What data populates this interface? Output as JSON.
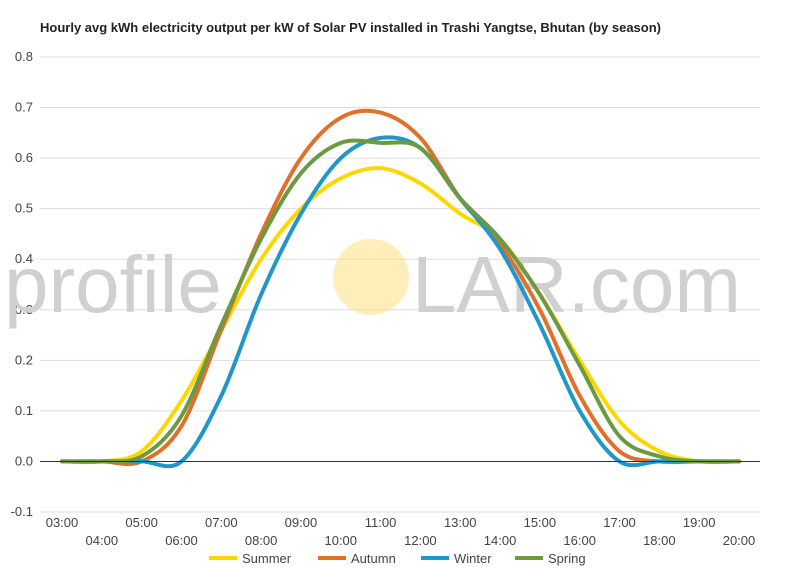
{
  "chart_data": {
    "type": "line",
    "title": "Hourly avg kWh electricity output per kW of Solar PV installed in Trashi Yangtse, Bhutan (by season)",
    "xlabel": "",
    "ylabel": "",
    "x": [
      "03:00",
      "04:00",
      "05:00",
      "06:00",
      "07:00",
      "08:00",
      "09:00",
      "10:00",
      "11:00",
      "12:00",
      "13:00",
      "14:00",
      "15:00",
      "16:00",
      "17:00",
      "18:00",
      "19:00",
      "20:00"
    ],
    "ylim": [
      -0.1,
      0.8
    ],
    "yticks": [
      "0.8",
      "0.7",
      "0.6",
      "0.5",
      "0.4",
      "0.3",
      "0.2",
      "0.1",
      "0.0",
      "-0.1"
    ],
    "grid": true,
    "legend_position": "bottom",
    "series": [
      {
        "name": "Summer",
        "color": "#FFD700",
        "values": [
          0.0,
          0.0,
          0.02,
          0.12,
          0.26,
          0.4,
          0.5,
          0.56,
          0.58,
          0.55,
          0.49,
          0.44,
          0.33,
          0.2,
          0.08,
          0.02,
          0.0,
          0.0
        ]
      },
      {
        "name": "Autumn",
        "color": "#E0702A",
        "values": [
          0.0,
          0.0,
          0.0,
          0.07,
          0.26,
          0.45,
          0.6,
          0.68,
          0.69,
          0.64,
          0.52,
          0.43,
          0.3,
          0.13,
          0.02,
          0.0,
          0.0,
          0.0
        ]
      },
      {
        "name": "Winter",
        "color": "#2196C8",
        "values": [
          0.0,
          0.0,
          0.0,
          0.0,
          0.13,
          0.33,
          0.49,
          0.6,
          0.64,
          0.62,
          0.52,
          0.42,
          0.27,
          0.1,
          0.0,
          0.0,
          0.0,
          0.0
        ]
      },
      {
        "name": "Spring",
        "color": "#6B9A43",
        "values": [
          0.0,
          0.0,
          0.01,
          0.09,
          0.27,
          0.44,
          0.57,
          0.63,
          0.63,
          0.62,
          0.52,
          0.44,
          0.33,
          0.19,
          0.05,
          0.01,
          0.0,
          0.0
        ]
      }
    ]
  },
  "watermark": {
    "left": "profile",
    "sun": "S",
    "right": "LAR.com",
    "sun_color": "#FFE082"
  }
}
